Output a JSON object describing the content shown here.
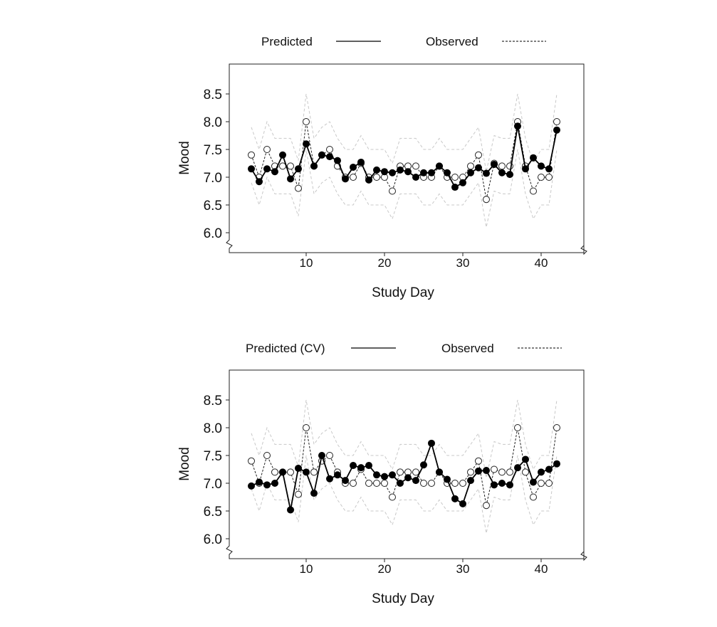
{
  "chart_data": [
    {
      "type": "line",
      "legend": {
        "predicted": "Predicted",
        "observed": "Observed",
        "placement": "top"
      },
      "xlabel": "Study Day",
      "ylabel": "Mood",
      "xlim": [
        1,
        45
      ],
      "ylim": [
        5.6,
        8.9
      ],
      "xticks": [
        10,
        20,
        30,
        40
      ],
      "yticks": [
        "6.0",
        "6.5",
        "7.0",
        "7.5",
        "8.0",
        "8.5"
      ],
      "x": [
        3,
        4,
        5,
        6,
        7,
        8,
        9,
        10,
        11,
        12,
        13,
        14,
        15,
        16,
        17,
        18,
        19,
        20,
        21,
        22,
        23,
        24,
        25,
        26,
        27,
        28,
        29,
        30,
        31,
        32,
        33,
        34,
        35,
        36,
        37,
        38,
        39,
        40,
        41,
        42
      ],
      "series": [
        {
          "name": "Predicted",
          "style": "solid-filled",
          "values": [
            7.15,
            6.92,
            7.15,
            7.1,
            7.4,
            6.97,
            7.15,
            7.6,
            7.2,
            7.4,
            7.37,
            7.3,
            6.97,
            7.18,
            7.27,
            6.95,
            7.13,
            7.1,
            7.08,
            7.13,
            7.1,
            7.0,
            7.08,
            7.08,
            7.2,
            7.08,
            6.82,
            6.9,
            7.08,
            7.17,
            7.07,
            7.23,
            7.08,
            7.05,
            7.92,
            7.15,
            7.35,
            7.2,
            7.15,
            7.85
          ]
        },
        {
          "name": "Observed",
          "style": "dashed-open",
          "values": [
            7.4,
            7.0,
            7.5,
            7.2,
            7.2,
            7.2,
            6.8,
            8.0,
            7.2,
            7.4,
            7.5,
            7.2,
            7.0,
            7.0,
            7.25,
            7.0,
            7.0,
            7.0,
            6.75,
            7.2,
            7.2,
            7.2,
            7.0,
            7.0,
            7.2,
            7.0,
            7.0,
            7.0,
            7.2,
            7.4,
            6.6,
            7.25,
            7.2,
            7.2,
            8.0,
            7.2,
            6.75,
            7.0,
            7.0,
            8.0
          ]
        }
      ],
      "band_offset": 0.5,
      "band_color": "#c8c8c8"
    },
    {
      "type": "line",
      "legend": {
        "predicted": "Predicted (CV)",
        "observed": "Observed",
        "placement": "top"
      },
      "xlabel": "Study Day",
      "ylabel": "Mood",
      "xlim": [
        1,
        45
      ],
      "ylim": [
        5.6,
        8.9
      ],
      "xticks": [
        10,
        20,
        30,
        40
      ],
      "yticks": [
        "6.0",
        "6.5",
        "7.0",
        "7.5",
        "8.0",
        "8.5"
      ],
      "x": [
        3,
        4,
        5,
        6,
        7,
        8,
        9,
        10,
        11,
        12,
        13,
        14,
        15,
        16,
        17,
        18,
        19,
        20,
        21,
        22,
        23,
        24,
        25,
        26,
        27,
        28,
        29,
        30,
        31,
        32,
        33,
        34,
        35,
        36,
        37,
        38,
        39,
        40,
        41,
        42
      ],
      "series": [
        {
          "name": "Predicted (CV)",
          "style": "solid-filled",
          "values": [
            6.95,
            7.02,
            6.97,
            7.0,
            7.2,
            6.52,
            7.27,
            7.2,
            6.82,
            7.5,
            7.08,
            7.15,
            7.05,
            7.32,
            7.28,
            7.32,
            7.15,
            7.12,
            7.15,
            7.0,
            7.1,
            7.05,
            7.33,
            7.72,
            7.2,
            7.07,
            6.72,
            6.63,
            7.05,
            7.22,
            7.23,
            6.97,
            7.0,
            6.97,
            7.28,
            7.43,
            7.02,
            7.2,
            7.25,
            7.35
          ]
        },
        {
          "name": "Observed",
          "style": "dashed-open",
          "values": [
            7.4,
            7.0,
            7.5,
            7.2,
            7.2,
            7.2,
            6.8,
            8.0,
            7.2,
            7.4,
            7.5,
            7.2,
            7.0,
            7.0,
            7.25,
            7.0,
            7.0,
            7.0,
            6.75,
            7.2,
            7.2,
            7.2,
            7.0,
            7.0,
            7.2,
            7.0,
            7.0,
            7.0,
            7.2,
            7.4,
            6.6,
            7.25,
            7.2,
            7.2,
            8.0,
            7.2,
            6.75,
            7.0,
            7.0,
            8.0
          ]
        }
      ],
      "band_offset": 0.5,
      "band_color": "#c8c8c8"
    }
  ]
}
